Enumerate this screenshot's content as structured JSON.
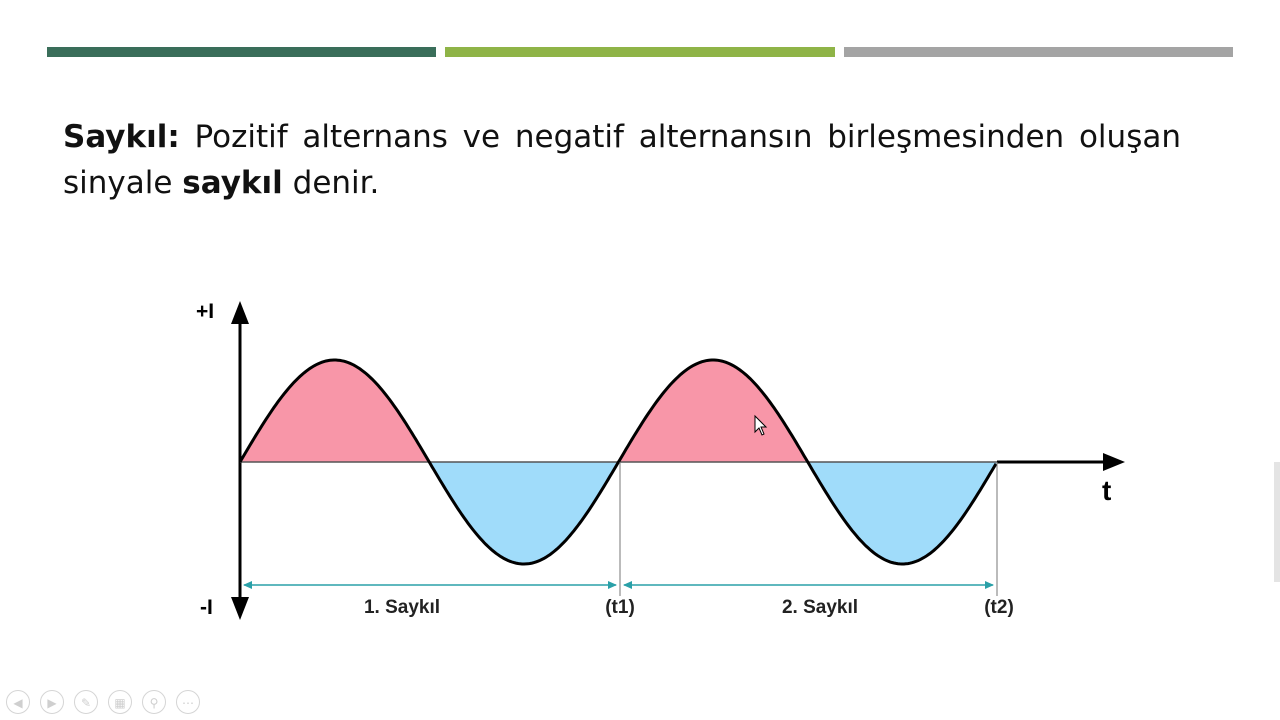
{
  "header_bars": {
    "colors": [
      "#3a6e5a",
      "#8fb447",
      "#a4a4a4"
    ]
  },
  "definition": {
    "term": "Saykıl:",
    "text_1": " Pozitif alternans ve negatif alternansın birleşmesinden oluşan sinyale ",
    "bold_word": "saykıl",
    "text_2": " denir."
  },
  "diagram": {
    "y_top_label": "+I",
    "y_bottom_label": "-I",
    "x_axis_label": "t",
    "cycle_1_label": "1. Saykıl",
    "cycle_2_label": "2. Saykıl",
    "t1_label": "(t1)",
    "t2_label": "(t2)",
    "positive_color": "#f896a8",
    "negative_color": "#a0dcfa",
    "arrow_color": "#2aa0a8"
  },
  "controls": {
    "icons": [
      "prev-icon",
      "next-icon",
      "pen-icon",
      "slides-icon",
      "zoom-icon",
      "more-icon"
    ]
  }
}
